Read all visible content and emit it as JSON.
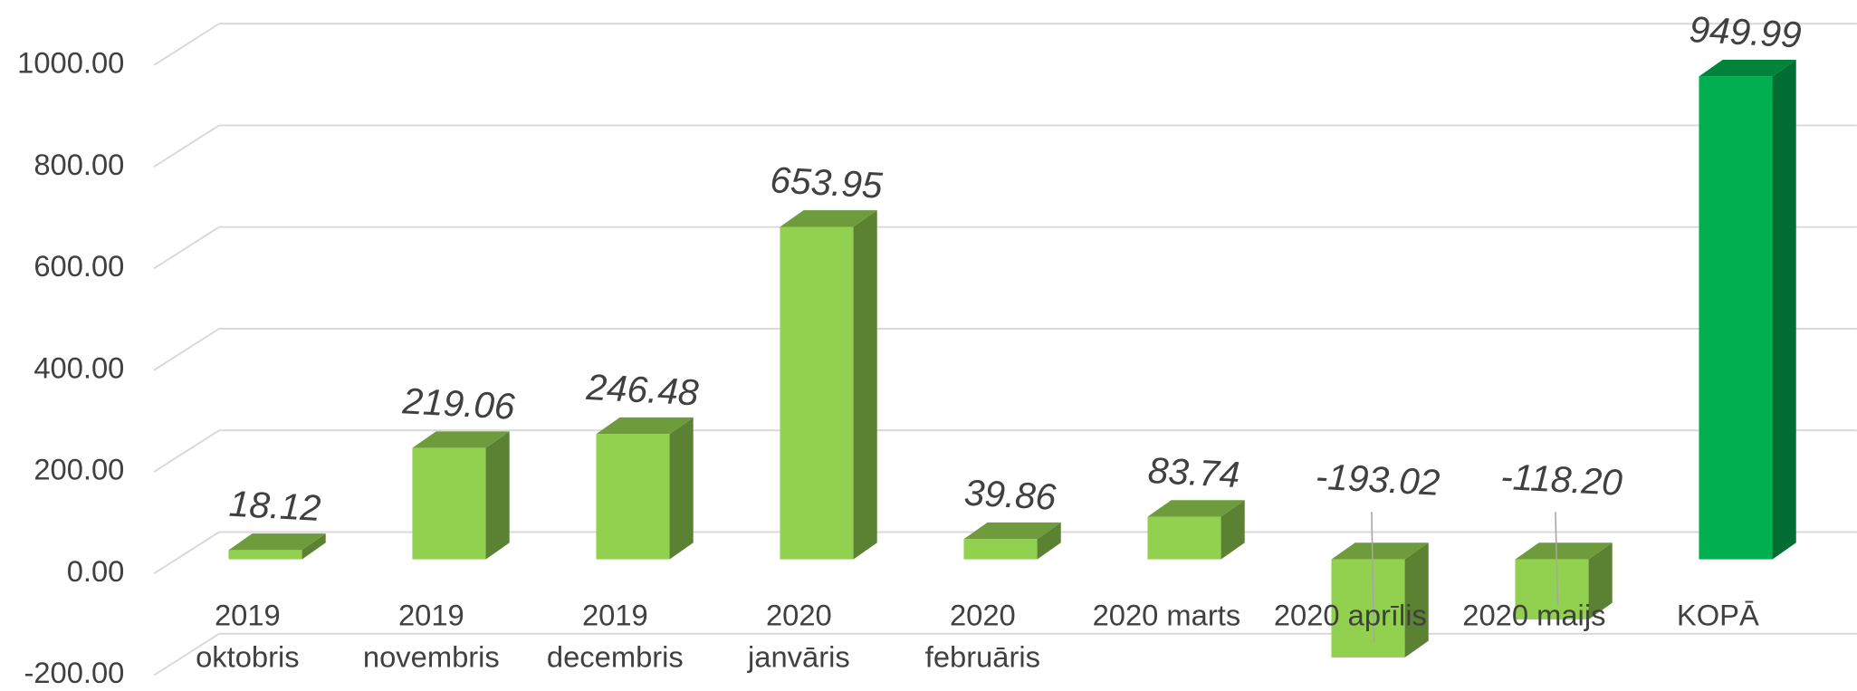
{
  "chart_data": {
    "type": "bar3d",
    "categories": [
      "2019 oktobris",
      "2019 novembris",
      "2019 decembris",
      "2020 janvāris",
      "2020 februāris",
      "2020 marts",
      "2020 aprīlis",
      "2020 maijs",
      "KOPĀ"
    ],
    "values": [
      18.12,
      219.06,
      246.48,
      653.95,
      39.86,
      83.74,
      -193.02,
      -118.2,
      949.99
    ],
    "value_labels": [
      "18.12",
      "219.06",
      "246.48",
      "653.95",
      "39.86",
      "83.74",
      "-193.02",
      "-118.20",
      "949.99"
    ],
    "colors": [
      "#92d050",
      "#92d050",
      "#92d050",
      "#92d050",
      "#92d050",
      "#92d050",
      "#92d050",
      "#92d050",
      "#00b050"
    ],
    "ylim": [
      -200,
      1000
    ],
    "yticks": [
      {
        "value": -200,
        "label": "-200.00"
      },
      {
        "value": 0,
        "label": "0.00"
      },
      {
        "value": 200,
        "label": "200.00"
      },
      {
        "value": 400,
        "label": "400.00"
      },
      {
        "value": 600,
        "label": "600.00"
      },
      {
        "value": 800,
        "label": "800.00"
      },
      {
        "value": 1000,
        "label": "1000.00"
      }
    ],
    "grid": true
  }
}
